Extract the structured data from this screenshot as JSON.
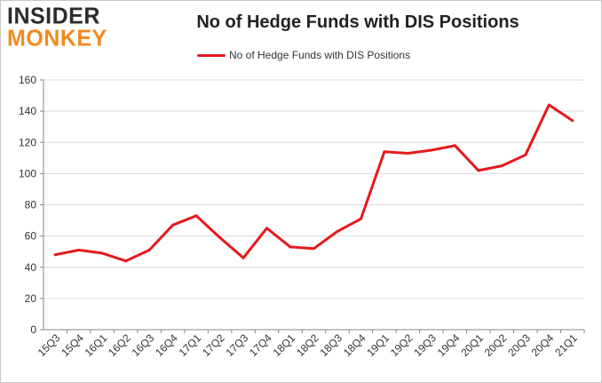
{
  "branding": {
    "logo_line1": "INSIDER",
    "logo_line2": "MONKEY"
  },
  "chart_data": {
    "type": "line",
    "title": "No of Hedge Funds with DIS Positions",
    "xlabel": "",
    "ylabel": "",
    "categories": [
      "15Q3",
      "15Q4",
      "16Q1",
      "16Q2",
      "16Q3",
      "16Q4",
      "17Q1",
      "17Q2",
      "17Q3",
      "17Q4",
      "18Q1",
      "18Q2",
      "18Q3",
      "18Q4",
      "19Q1",
      "19Q2",
      "19Q3",
      "19Q4",
      "20Q1",
      "20Q2",
      "20Q3",
      "20Q4",
      "21Q1"
    ],
    "series": [
      {
        "name": "No of Hedge Funds with DIS Positions",
        "color": "#e41a1c",
        "values": [
          48,
          51,
          49,
          44,
          51,
          67,
          73,
          59,
          46,
          65,
          53,
          52,
          63,
          71,
          114,
          113,
          115,
          118,
          102,
          105,
          112,
          144,
          134
        ]
      }
    ],
    "ylim": [
      0,
      160
    ],
    "yticks": [
      0,
      20,
      40,
      60,
      80,
      100,
      120,
      140,
      160
    ],
    "grid": true,
    "legend_position": "top-center"
  }
}
